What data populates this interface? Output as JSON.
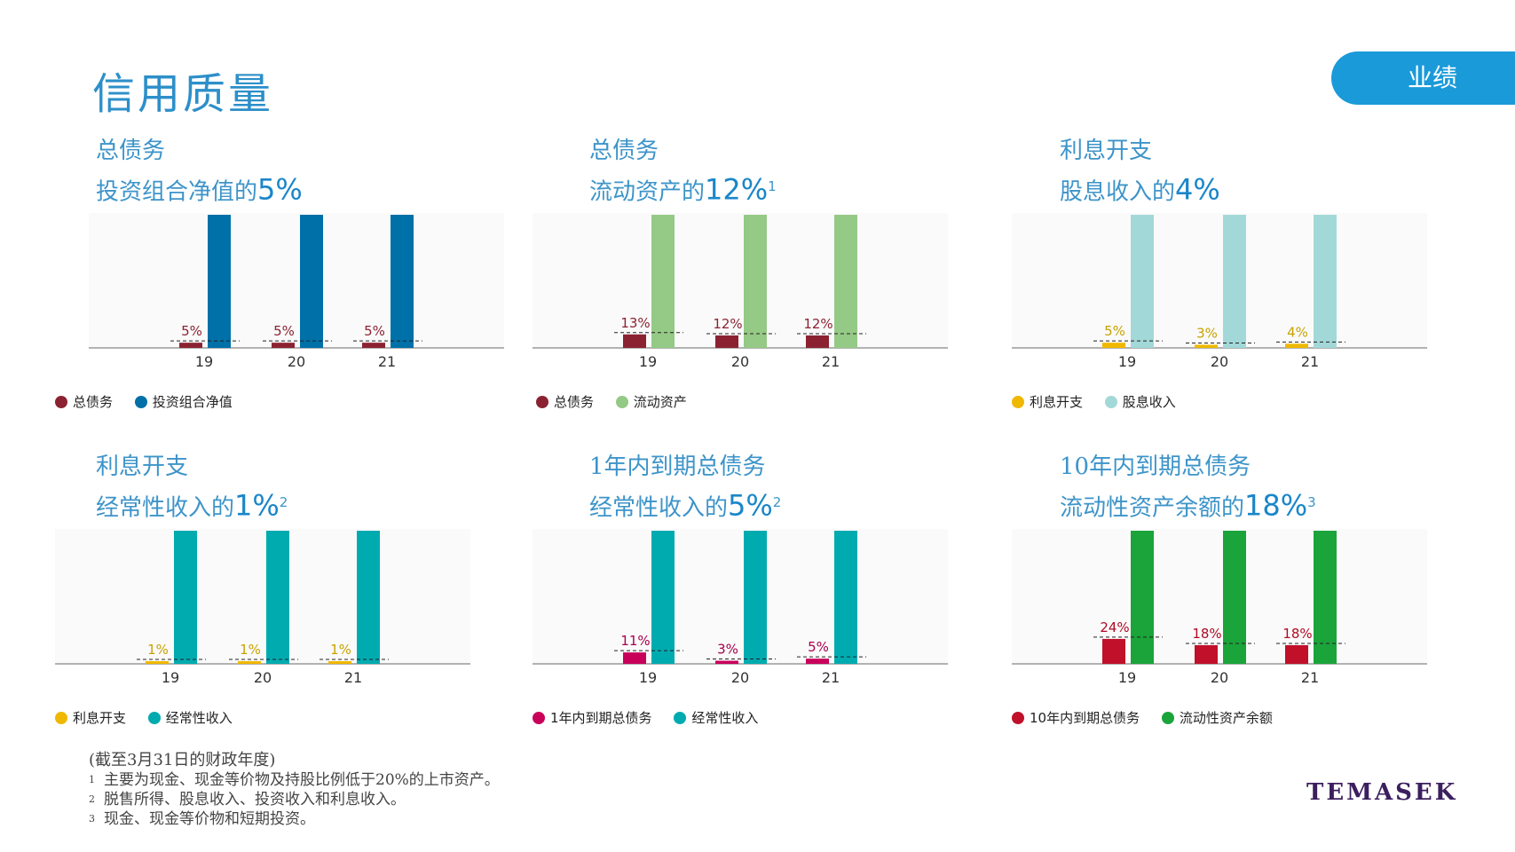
{
  "header": {
    "title": "信用质量",
    "section_tab": "业绩"
  },
  "chart_data": [
    {
      "type": "bar",
      "title_line1": "总债务",
      "title_line2_text": "投资组合净值的",
      "title_line2_value": "5%",
      "title_sup": "",
      "categories": [
        "19",
        "20",
        "21"
      ],
      "series": [
        {
          "name": "总债务",
          "values": [
            5,
            5,
            5
          ],
          "color": "#8b2232"
        },
        {
          "name": "投资组合净值",
          "values": [
            100,
            100,
            100
          ],
          "color": "#0070a8"
        }
      ],
      "labels": [
        "5%",
        "5%",
        "5%"
      ],
      "label_color": "#8b2232",
      "ylim": [
        0,
        100
      ],
      "grid": false,
      "legend": "bottom-left"
    },
    {
      "type": "bar",
      "title_line1": "总债务",
      "title_line2_text": "流动资产的",
      "title_line2_value": "12%",
      "title_sup": "1",
      "categories": [
        "19",
        "20",
        "21"
      ],
      "series": [
        {
          "name": "总债务",
          "values": [
            13,
            12,
            12
          ],
          "color": "#8b2232"
        },
        {
          "name": "流动资产",
          "values": [
            100,
            100,
            100
          ],
          "color": "#95c986"
        }
      ],
      "labels": [
        "13%",
        "12%",
        "12%"
      ],
      "label_color": "#8b2232",
      "ylim": [
        0,
        100
      ],
      "grid": false,
      "legend": "bottom-left"
    },
    {
      "type": "bar",
      "title_line1": "利息开支",
      "title_line2_text": "股息收入的",
      "title_line2_value": "4%",
      "title_sup": "",
      "categories": [
        "19",
        "20",
        "21"
      ],
      "series": [
        {
          "name": "利息开支",
          "values": [
            5,
            3,
            4
          ],
          "color": "#f0b800"
        },
        {
          "name": "股息收入",
          "values": [
            100,
            100,
            100
          ],
          "color": "#a3d8d8"
        }
      ],
      "labels": [
        "5%",
        "3%",
        "4%"
      ],
      "label_color": "#c8a200",
      "ylim": [
        0,
        100
      ],
      "grid": false,
      "legend": "bottom-left"
    },
    {
      "type": "bar",
      "title_line1": "利息开支",
      "title_line2_text": "经常性收入的",
      "title_line2_value": "1%",
      "title_sup": "2",
      "categories": [
        "19",
        "20",
        "21"
      ],
      "series": [
        {
          "name": "利息开支",
          "values": [
            1,
            1,
            1
          ],
          "color": "#f0b800"
        },
        {
          "name": "经常性收入",
          "values": [
            100,
            100,
            100
          ],
          "color": "#00abb0"
        }
      ],
      "labels": [
        "1%",
        "1%",
        "1%"
      ],
      "label_color": "#c8a200",
      "ylim": [
        0,
        100
      ],
      "grid": false,
      "legend": "bottom-left"
    },
    {
      "type": "bar",
      "title_line1": "1年内到期总债务",
      "title_line2_text": "经常性收入的",
      "title_line2_value": "5%",
      "title_sup": "2",
      "categories": [
        "19",
        "20",
        "21"
      ],
      "series": [
        {
          "name": "1年内到期总债务",
          "values": [
            11,
            3,
            5
          ],
          "color": "#c8005a"
        },
        {
          "name": "经常性收入",
          "values": [
            100,
            100,
            100
          ],
          "color": "#00abb0"
        }
      ],
      "labels": [
        "11%",
        "3%",
        "5%"
      ],
      "label_color": "#a8004c",
      "ylim": [
        0,
        100
      ],
      "grid": false,
      "legend": "bottom-left"
    },
    {
      "type": "bar",
      "title_line1": "10年内到期总债务",
      "title_line2_text": "流动性资产余额的",
      "title_line2_value": "18%",
      "title_sup": "3",
      "categories": [
        "19",
        "20",
        "21"
      ],
      "series": [
        {
          "name": "10年内到期总债务",
          "values": [
            24,
            18,
            18
          ],
          "color": "#c0102a"
        },
        {
          "name": "流动性资产余额",
          "values": [
            100,
            100,
            100
          ],
          "color": "#1aa43a"
        }
      ],
      "labels": [
        "24%",
        "18%",
        "18%"
      ],
      "label_color": "#b00a24",
      "ylim": [
        0,
        100
      ],
      "grid": false,
      "legend": "bottom-left"
    }
  ],
  "footnotes": {
    "main": "(截至3月31日的财政年度)",
    "items": [
      {
        "num": "1",
        "text": "主要为现金、现金等价物及持股比例低于20%的上市资产。"
      },
      {
        "num": "2",
        "text": "脱售所得、股息收入、投资收入和利息收入。"
      },
      {
        "num": "3",
        "text": "现金、现金等价物和短期投资。"
      }
    ]
  },
  "logo": {
    "text": "TEMASEK"
  }
}
